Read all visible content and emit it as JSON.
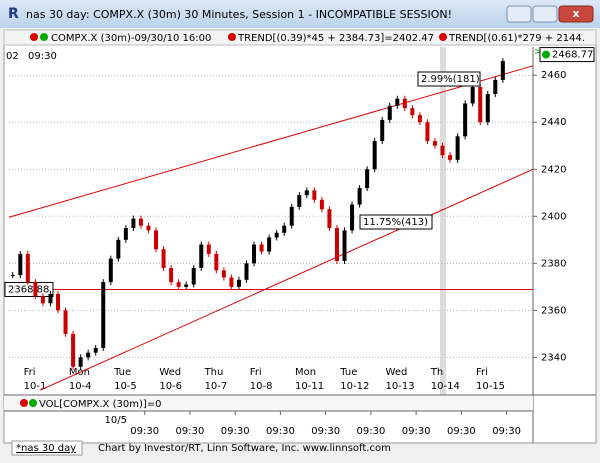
{
  "window": {
    "title": "nas 30 day: COMPX.X (30m) 30 Minutes, Session 1 - INCOMPATIBLE SESSION!"
  },
  "legend": [
    "COMPX.X (30m)-09/30/10 16:00",
    "TREND[(0.39)*45 + 2384.73]=2402.47",
    "TREND[(0.61)*279 + 2144."
  ],
  "top_time_labels": [
    "02",
    "09:30"
  ],
  "chart_data": {
    "type": "candlestick",
    "days": [
      {
        "day": "Fri",
        "date": "10-1"
      },
      {
        "day": "Mon",
        "date": "10-4"
      },
      {
        "day": "Tue",
        "date": "10-5"
      },
      {
        "day": "Wed",
        "date": "10-6"
      },
      {
        "day": "Thu",
        "date": "10-7"
      },
      {
        "day": "Fri",
        "date": "10-8"
      },
      {
        "day": "Mon",
        "date": "10-11"
      },
      {
        "day": "Tue",
        "date": "10-12"
      },
      {
        "day": "Wed",
        "date": "10-13"
      },
      {
        "day": "Th",
        "date": "10-14"
      },
      {
        "day": "Fri",
        "date": "10-15"
      }
    ],
    "values": [
      2375,
      2384,
      2372,
      2366,
      2363,
      2367,
      2360,
      2350,
      2336,
      2340,
      2342,
      2344,
      2372,
      2382,
      2390,
      2395,
      2399,
      2396,
      2394,
      2386,
      2378,
      2372,
      2370,
      2371,
      2378,
      2388,
      2384,
      2377,
      2374,
      2370,
      2373,
      2380,
      2388,
      2385,
      2391,
      2393,
      2396,
      2404,
      2409,
      2411,
      2407,
      2403,
      2395,
      2381,
      2394,
      2405,
      2412,
      2420,
      2432,
      2441,
      2447,
      2450,
      2446,
      2443,
      2440,
      2432,
      2430,
      2426,
      2424,
      2434,
      2448,
      2455,
      2440,
      2452,
      2458,
      2466
    ],
    "up_color": "#000000",
    "down_color": "#cc0000",
    "xlim": [
      0,
      69.5
    ],
    "ylim": [
      2324,
      2472
    ],
    "yticks": [
      2340,
      2360,
      2380,
      2400,
      2420,
      2440,
      2460
    ],
    "grid": true,
    "last_value": 2468.77,
    "horizontal_line": {
      "value": 2368.88,
      "color": "#e00000"
    },
    "trend_lines": [
      {
        "x": [
          0,
          69.5
        ],
        "y": [
          2399.6,
          2464
        ],
        "color": "#e00000"
      },
      {
        "x": [
          4.1,
          69.5
        ],
        "y": [
          2326,
          2420
        ],
        "color": "#e00000"
      }
    ],
    "annotations": [
      "2.99%(181)",
      "11.75%(413)"
    ]
  },
  "volume_label": "VOL[COMPX.X (30m)]=0",
  "date_label": "10/5",
  "time_labels": [
    "09:30",
    "09:30",
    "09:30",
    "09:30",
    "09:30",
    "09:30",
    "09:30",
    "09:30",
    "09:30"
  ],
  "footer": {
    "tab": "*nas 30 day",
    "credit": "Chart by Investor/RT, Linn Software, Inc. www.linnsoft.com"
  }
}
